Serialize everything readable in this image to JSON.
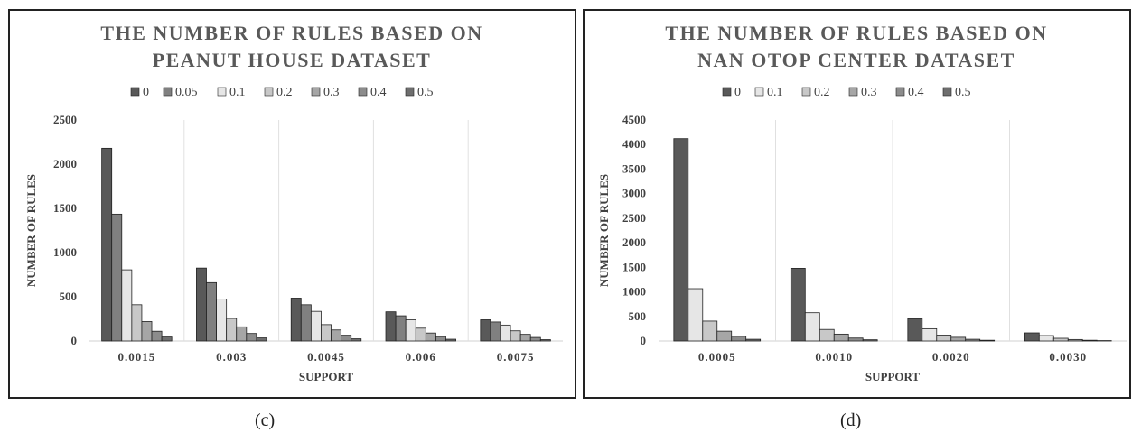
{
  "chart_data": [
    {
      "type": "bar",
      "title_lines": [
        "THE NUMBER OF RULES BASED ON",
        "PEANUT HOUSE DATASET"
      ],
      "xlabel": "SUPPORT",
      "ylabel": "NUMBER OF RULES",
      "ylim": [
        0,
        2500
      ],
      "yticks": [
        "0",
        "500",
        "1000",
        "1500",
        "2000",
        "2500"
      ],
      "categories": [
        "0.0015",
        "0.003",
        "0.0045",
        "0.006",
        "0.0075"
      ],
      "legend_position": "top",
      "grid": "vertical category separators",
      "series": [
        {
          "name": "0",
          "color": "#595959",
          "values": [
            2180,
            825,
            485,
            330,
            240
          ]
        },
        {
          "name": "0.05",
          "color": "#808080",
          "values": [
            1435,
            660,
            410,
            285,
            215
          ]
        },
        {
          "name": "0.1",
          "color": "#e6e6e6",
          "values": [
            805,
            475,
            335,
            240,
            180
          ]
        },
        {
          "name": "0.2",
          "color": "#c8c8c8",
          "values": [
            410,
            255,
            185,
            145,
            115
          ]
        },
        {
          "name": "0.3",
          "color": "#a6a6a6",
          "values": [
            220,
            160,
            125,
            90,
            75
          ]
        },
        {
          "name": "0.4",
          "color": "#8c8c8c",
          "values": [
            110,
            85,
            65,
            50,
            40
          ]
        },
        {
          "name": "0.5",
          "color": "#6e6e6e",
          "values": [
            45,
            35,
            25,
            20,
            15
          ]
        }
      ],
      "caption": "(c)"
    },
    {
      "type": "bar",
      "title_lines": [
        "THE NUMBER OF RULES BASED ON",
        "NAN OTOP CENTER DATASET"
      ],
      "xlabel": "SUPPORT",
      "ylabel": "NUMBER OF RULES",
      "ylim": [
        0,
        4500
      ],
      "yticks": [
        "0",
        "500",
        "1000",
        "1500",
        "2000",
        "2500",
        "3000",
        "3500",
        "4000",
        "4500"
      ],
      "categories": [
        "0.0005",
        "0.0010",
        "0.0020",
        "0.0030"
      ],
      "legend_position": "top",
      "grid": "vertical category separators",
      "series": [
        {
          "name": "0",
          "color": "#595959",
          "values": [
            4120,
            1480,
            455,
            165
          ]
        },
        {
          "name": "0.1",
          "color": "#e6e6e6",
          "values": [
            1065,
            575,
            250,
            110
          ]
        },
        {
          "name": "0.2",
          "color": "#c8c8c8",
          "values": [
            405,
            235,
            120,
            55
          ]
        },
        {
          "name": "0.3",
          "color": "#a6a6a6",
          "values": [
            200,
            140,
            75,
            30
          ]
        },
        {
          "name": "0.4",
          "color": "#8c8c8c",
          "values": [
            95,
            60,
            35,
            15
          ]
        },
        {
          "name": "0.5",
          "color": "#6e6e6e",
          "values": [
            35,
            25,
            15,
            8
          ]
        }
      ],
      "caption": "(d)"
    }
  ]
}
